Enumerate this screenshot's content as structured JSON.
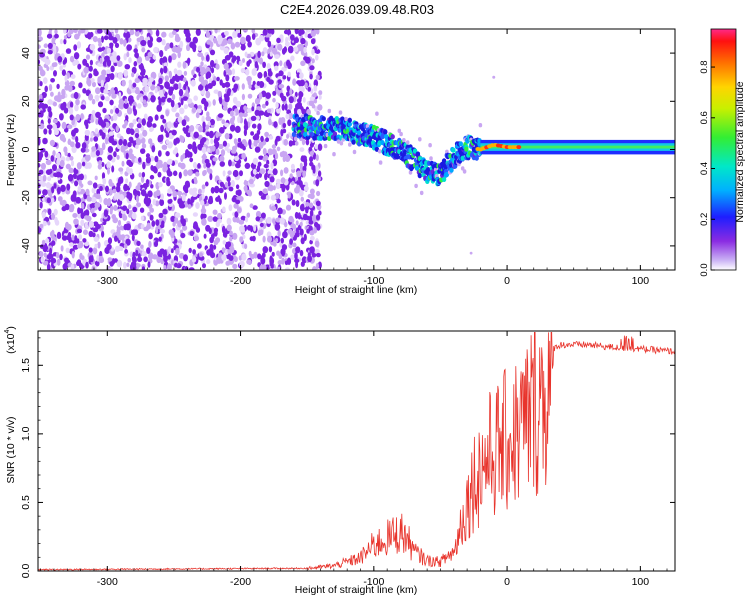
{
  "title": "C2E4.2026.039.09.48.R03",
  "colors": {
    "snr_line": "#e8342c",
    "spectrum_dot": "#7b22e0",
    "spectrum_faint": "#c9a6f2",
    "axis": "#000000"
  },
  "chart_data": [
    {
      "type": "heatmap",
      "name": "spectrogram",
      "xlabel": "Height of straight line (km)",
      "ylabel": "Frequency (Hz)",
      "xlim": [
        -352,
        126
      ],
      "ylim": [
        -50,
        50
      ],
      "xticks": [
        -300,
        -200,
        -100,
        0,
        100
      ],
      "yticks": [
        -40,
        -20,
        0,
        20,
        40
      ],
      "ridge": {
        "x": [
          -160,
          -140,
          -120,
          -100,
          -80,
          -60,
          -50,
          -40,
          -30,
          -20,
          -10,
          0,
          20,
          60,
          126
        ],
        "freq": [
          10,
          9,
          8,
          5,
          0,
          -9,
          -10,
          -3,
          1,
          0,
          2,
          1,
          1,
          1,
          1
        ]
      },
      "colorbar": {
        "label": "Normalized spectral amplitude",
        "ticks": [
          "0.0",
          "0.2",
          "0.4",
          "0.6",
          "0.8"
        ],
        "range": [
          0,
          0.95
        ]
      }
    },
    {
      "type": "line",
      "name": "snr",
      "xlabel": "Height of straight line (km)",
      "ylabel": "SNR (10 * v/v)",
      "exponent_label": "(x10",
      "exponent_power": "4",
      "xlim": [
        -352,
        126
      ],
      "ylim": [
        0,
        1.75
      ],
      "xticks": [
        -300,
        -200,
        -100,
        0,
        100
      ],
      "yticks": [
        "0.0",
        "0.5",
        "1.0",
        "1.5"
      ],
      "envelope": {
        "x": [
          -352,
          -150,
          -130,
          -110,
          -100,
          -90,
          -80,
          -75,
          -70,
          -60,
          -50,
          -40,
          -35,
          -30,
          -25,
          -20,
          -15,
          -10,
          -5,
          0,
          10,
          20,
          30,
          40,
          60,
          80,
          100,
          126
        ],
        "y": [
          0.01,
          0.02,
          0.04,
          0.1,
          0.2,
          0.25,
          0.3,
          0.25,
          0.15,
          0.08,
          0.07,
          0.15,
          0.4,
          0.6,
          0.8,
          0.9,
          1.0,
          1.05,
          1.1,
          1.15,
          1.25,
          1.45,
          1.6,
          1.65,
          1.65,
          1.63,
          1.62,
          1.6
        ]
      }
    }
  ]
}
